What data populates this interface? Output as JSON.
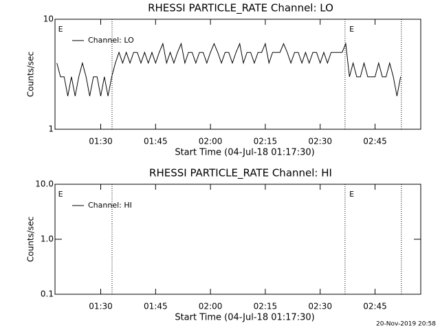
{
  "chart_data": [
    {
      "type": "line",
      "title": "RHESSI PARTICLE_RATE Channel: LO",
      "xlabel": "Start Time (04-Jul-18 01:17:30)",
      "ylabel": "Counts/sec",
      "log_y": true,
      "ylim": [
        1,
        10
      ],
      "yticks": [
        1,
        10
      ],
      "xlim": [
        77.5,
        177.5
      ],
      "xticks": [
        {
          "value": 90,
          "label": "01:30"
        },
        {
          "value": 105,
          "label": "01:45"
        },
        {
          "value": 120,
          "label": "02:00"
        },
        {
          "value": 135,
          "label": "02:15"
        },
        {
          "value": 150,
          "label": "02:30"
        },
        {
          "value": 165,
          "label": "02:45"
        }
      ],
      "markers": [
        93.1,
        156.8,
        172.2
      ],
      "annotations": [
        {
          "text": "E",
          "x": 78
        },
        {
          "text": "E",
          "x": 157.6
        }
      ],
      "legend": "upper left",
      "series": [
        {
          "name": "Channel: LO",
          "color": "#000000",
          "x": [
            78,
            79,
            80,
            81,
            82,
            83,
            84,
            85,
            86,
            87,
            88,
            89,
            90,
            91,
            92,
            93,
            94,
            95,
            96,
            97,
            98,
            99,
            100,
            101,
            102,
            103,
            104,
            105,
            106,
            107,
            108,
            109,
            110,
            111,
            112,
            113,
            114,
            115,
            116,
            117,
            118,
            119,
            120,
            121,
            122,
            123,
            124,
            125,
            126,
            127,
            128,
            129,
            130,
            131,
            132,
            133,
            134,
            135,
            136,
            137,
            138,
            139,
            140,
            141,
            142,
            143,
            144,
            145,
            146,
            147,
            148,
            149,
            150,
            151,
            152,
            153,
            154,
            155,
            156,
            157,
            158,
            159,
            160,
            161,
            162,
            163,
            164,
            165,
            166,
            167,
            168,
            169,
            170,
            171,
            172
          ],
          "values": [
            4,
            3,
            3,
            2,
            3,
            2,
            3,
            4,
            3,
            2,
            3,
            3,
            2,
            3,
            2,
            3,
            4,
            5,
            4,
            5,
            4,
            5,
            5,
            4,
            5,
            4,
            5,
            4,
            5,
            6,
            4,
            5,
            4,
            5,
            6,
            4,
            5,
            5,
            4,
            5,
            5,
            4,
            5,
            6,
            5,
            4,
            5,
            5,
            4,
            5,
            6,
            4,
            5,
            5,
            4,
            5,
            5,
            6,
            4,
            5,
            5,
            5,
            6,
            5,
            4,
            5,
            5,
            4,
            5,
            4,
            5,
            5,
            4,
            5,
            4,
            5,
            5,
            5,
            5,
            6,
            3,
            4,
            3,
            3,
            4,
            3,
            3,
            3,
            4,
            3,
            3,
            4,
            3,
            2,
            3
          ]
        }
      ]
    },
    {
      "type": "line",
      "title": "RHESSI PARTICLE_RATE Channel: HI",
      "xlabel": "Start Time (04-Jul-18 01:17:30)",
      "ylabel": "Counts/sec",
      "log_y": true,
      "ylim": [
        0.1,
        10
      ],
      "yticks": [
        0.1,
        {
          "value": 1,
          "label": "1.0"
        },
        {
          "value": 10,
          "label": "10.0"
        }
      ],
      "xlim": [
        77.5,
        177.5
      ],
      "xticks": [
        {
          "value": 90,
          "label": "01:30"
        },
        {
          "value": 105,
          "label": "01:45"
        },
        {
          "value": 120,
          "label": "02:00"
        },
        {
          "value": 135,
          "label": "02:15"
        },
        {
          "value": 150,
          "label": "02:30"
        },
        {
          "value": 165,
          "label": "02:45"
        }
      ],
      "markers": [
        93.1,
        156.8,
        172.2
      ],
      "annotations": [
        {
          "text": "E",
          "x": 78
        },
        {
          "text": "E",
          "x": 157.6
        }
      ],
      "legend": "upper left",
      "series": [
        {
          "name": "Channel: HI",
          "color": "#000000",
          "x": [],
          "values": []
        }
      ]
    }
  ],
  "footer": "20-Nov-2019 20:58"
}
